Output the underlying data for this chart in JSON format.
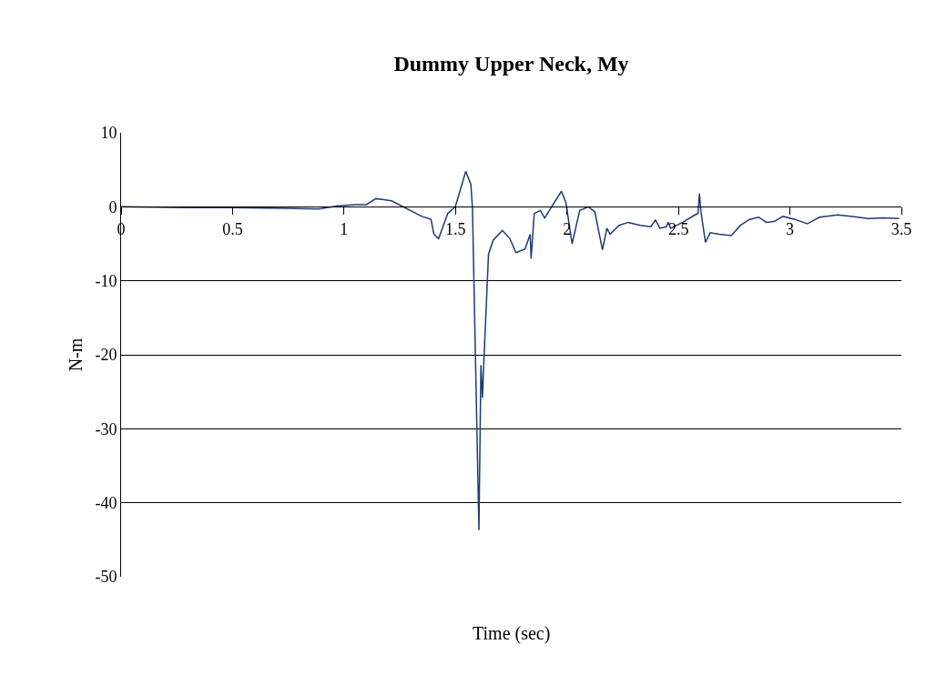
{
  "chart_data": {
    "type": "line",
    "title": "Dummy Upper Neck, My",
    "xlabel": "Time (sec)",
    "ylabel": "N-m",
    "xlim": [
      0,
      3.5
    ],
    "ylim": [
      -50,
      10
    ],
    "xticks": [
      0,
      0.5,
      1,
      1.5,
      2,
      2.5,
      3,
      3.5
    ],
    "yticks": [
      10,
      0,
      -10,
      -20,
      -30,
      -40,
      -50
    ],
    "grid": "y",
    "marker": "none",
    "line_style": "solid",
    "series": [
      {
        "color": "#1f3a73",
        "x": [
          0,
          0.3,
          0.5,
          0.735,
          0.886,
          0.968,
          1.049,
          1.1,
          1.143,
          1.172,
          1.213,
          1.349,
          1.39,
          1.403,
          1.424,
          1.465,
          1.499,
          1.546,
          1.569,
          1.576,
          1.605,
          1.614,
          1.621,
          1.628,
          1.648,
          1.669,
          1.71,
          1.744,
          1.771,
          1.812,
          1.835,
          1.839,
          1.853,
          1.88,
          1.9,
          1.927,
          1.975,
          1.995,
          2.023,
          2.057,
          2.097,
          2.125,
          2.159,
          2.179,
          2.193,
          2.234,
          2.274,
          2.329,
          2.376,
          2.397,
          2.417,
          2.445,
          2.454,
          2.465,
          2.519,
          2.574,
          2.588,
          2.594,
          2.601,
          2.621,
          2.642,
          2.683,
          2.737,
          2.778,
          2.819,
          2.86,
          2.894,
          2.928,
          2.969,
          3.023,
          3.078,
          3.132,
          3.214,
          3.282,
          3.35,
          3.418,
          3.49
        ],
        "values": [
          0,
          -0.1,
          -0.1,
          -0.2,
          -0.3,
          0.1,
          0.3,
          0.3,
          1.1,
          1.0,
          0.8,
          -1.3,
          -1.7,
          -3.7,
          -4.3,
          -0.9,
          0,
          4.8,
          3.0,
          -0.2,
          -43.7,
          -21.4,
          -25.8,
          -20.3,
          -6.4,
          -4.5,
          -3.2,
          -4.3,
          -6.2,
          -5.7,
          -3.7,
          -7.0,
          -0.9,
          -0.5,
          -1.5,
          -0.2,
          2.1,
          0.6,
          -5.0,
          -0.5,
          0,
          -0.7,
          -5.8,
          -2.9,
          -3.7,
          -2.5,
          -2.1,
          -2.5,
          -2.7,
          -1.8,
          -2.9,
          -2.7,
          -2.1,
          -2.9,
          -2.1,
          -1.1,
          -0.9,
          1.8,
          -0.7,
          -4.8,
          -3.5,
          -3.7,
          -3.9,
          -2.5,
          -1.7,
          -1.4,
          -2.1,
          -2.0,
          -1.3,
          -1.7,
          -2.3,
          -1.4,
          -1.1,
          -1.3,
          -1.6,
          -1.5,
          -1.6
        ]
      }
    ]
  }
}
